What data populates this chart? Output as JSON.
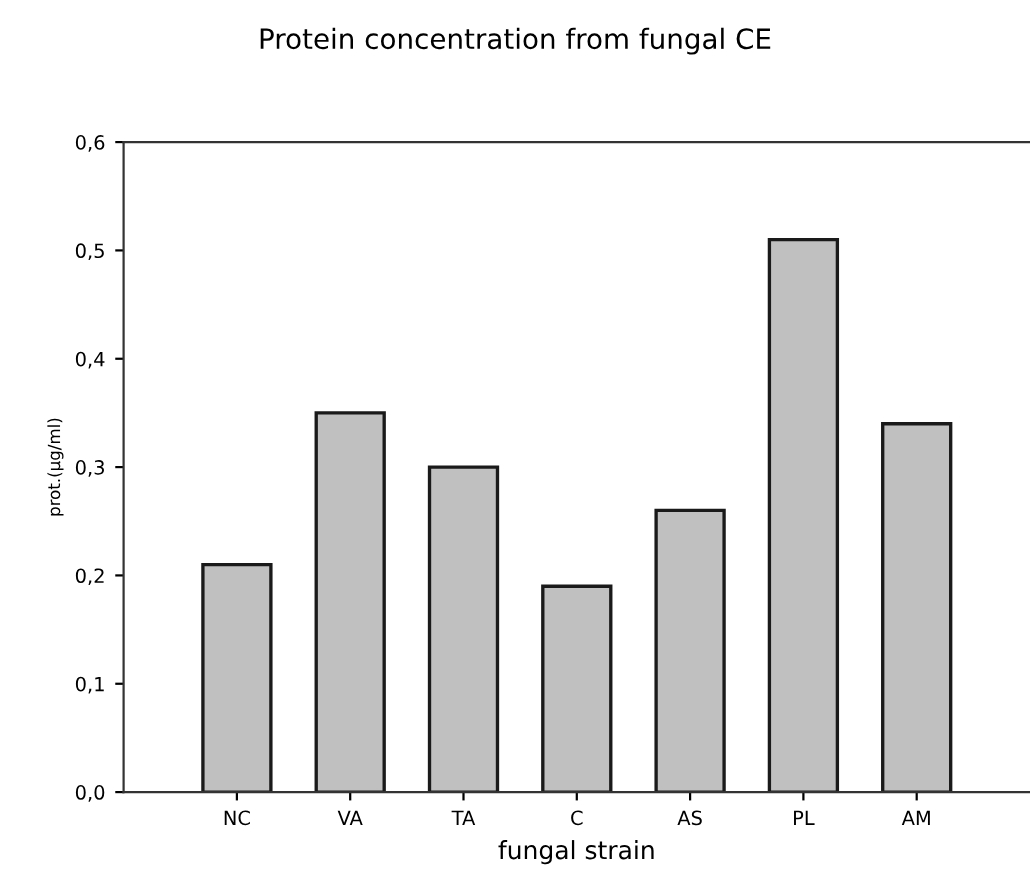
{
  "chart_data": {
    "type": "bar",
    "title": "Protein concentration from fungal CE",
    "xlabel": "fungal strain",
    "ylabel": "prot.(µg/ml)",
    "categories": [
      "NC",
      "VA",
      "TA",
      "C",
      "AS",
      "PL",
      "AM"
    ],
    "values": [
      0.21,
      0.35,
      0.3,
      0.19,
      0.26,
      0.51,
      0.34
    ],
    "color": "#c0c0c0",
    "ylim": [
      0,
      0.6
    ],
    "yticks": [
      {
        "value": 0,
        "label": "0,0"
      },
      {
        "value": 0.1,
        "label": "0,1"
      },
      {
        "value": 0.2,
        "label": "0,2"
      },
      {
        "value": 0.3,
        "label": "0,3"
      },
      {
        "value": 0.4,
        "label": "0,4"
      },
      {
        "value": 0.5,
        "label": "0,5"
      },
      {
        "value": 0.6,
        "label": "0,6"
      }
    ],
    "grid": false
  }
}
